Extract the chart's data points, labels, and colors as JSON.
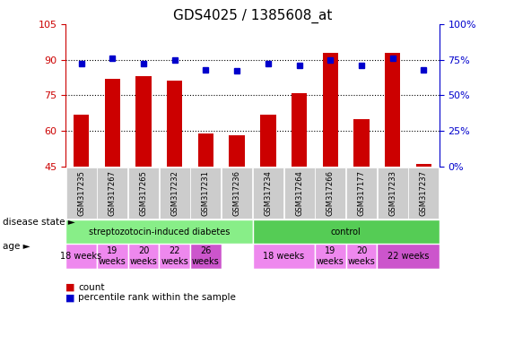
{
  "title": "GDS4025 / 1385608_at",
  "samples": [
    "GSM317235",
    "GSM317267",
    "GSM317265",
    "GSM317232",
    "GSM317231",
    "GSM317236",
    "GSM317234",
    "GSM317264",
    "GSM317266",
    "GSM317177",
    "GSM317233",
    "GSM317237"
  ],
  "counts": [
    67,
    82,
    83,
    81,
    59,
    58,
    67,
    76,
    93,
    65,
    93,
    46
  ],
  "percentiles": [
    72,
    76,
    72,
    75,
    68,
    67,
    72,
    71,
    75,
    71,
    76,
    68
  ],
  "ylim_left": [
    45,
    105
  ],
  "ylim_right": [
    0,
    100
  ],
  "yticks_left": [
    45,
    60,
    75,
    90,
    105
  ],
  "yticks_right": [
    0,
    25,
    50,
    75,
    100
  ],
  "bar_color": "#cc0000",
  "dot_color": "#0000cc",
  "disease_groups": [
    {
      "label": "streptozotocin-induced diabetes",
      "start": 0,
      "end": 6,
      "color": "#88ee88"
    },
    {
      "label": "control",
      "start": 6,
      "end": 12,
      "color": "#55cc55"
    }
  ],
  "age_groups": [
    {
      "label": "18 weeks",
      "start": 0,
      "end": 1,
      "color": "#ee88ee"
    },
    {
      "label": "19\nweeks",
      "start": 1,
      "end": 2,
      "color": "#ee88ee"
    },
    {
      "label": "20\nweeks",
      "start": 2,
      "end": 3,
      "color": "#ee88ee"
    },
    {
      "label": "22\nweeks",
      "start": 3,
      "end": 4,
      "color": "#ee88ee"
    },
    {
      "label": "26\nweeks",
      "start": 4,
      "end": 5,
      "color": "#cc55cc"
    },
    {
      "label": "18 weeks",
      "start": 6,
      "end": 8,
      "color": "#ee88ee"
    },
    {
      "label": "19\nweeks",
      "start": 8,
      "end": 9,
      "color": "#ee88ee"
    },
    {
      "label": "20\nweeks",
      "start": 9,
      "end": 10,
      "color": "#ee88ee"
    },
    {
      "label": "22 weeks",
      "start": 10,
      "end": 12,
      "color": "#cc55cc"
    }
  ],
  "sample_bg_color": "#cccccc",
  "left_axis_color": "#cc0000",
  "right_axis_color": "#0000cc",
  "fig_width": 5.63,
  "fig_height": 3.84,
  "label_disease_state": "disease state",
  "label_age": "age",
  "legend_count": "count",
  "legend_percentile": "percentile rank within the sample",
  "arrow": "►"
}
